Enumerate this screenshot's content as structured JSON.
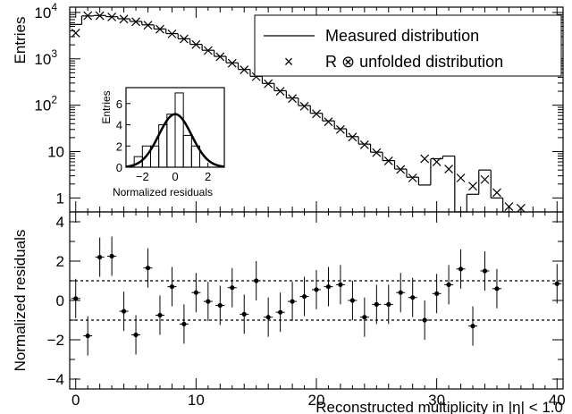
{
  "chart_data": [
    {
      "type": "line",
      "panel": "top",
      "ylabel": "Entries",
      "yscale": "log",
      "xlim": [
        -0.5,
        40.5
      ],
      "ylim": [
        0.5,
        13000
      ],
      "ytick_labels": [
        {
          "value": 1,
          "label": "1"
        },
        {
          "value": 10,
          "label": "10"
        },
        {
          "value": 100,
          "label": "10",
          "exp": "2"
        },
        {
          "value": 1000,
          "label": "10",
          "exp": "3"
        },
        {
          "value": 10000,
          "label": "10",
          "exp": "4"
        }
      ],
      "legend": {
        "placement": "top-right",
        "entries": [
          {
            "marker": "line",
            "label": "Measured distribution"
          },
          {
            "marker": "×",
            "label": "R ⊗ unfolded distribution"
          }
        ]
      },
      "series": [
        {
          "name": "Measured distribution",
          "style": "histogram",
          "x": [
            0,
            1,
            2,
            3,
            4,
            5,
            6,
            7,
            8,
            9,
            10,
            11,
            12,
            13,
            14,
            15,
            16,
            17,
            18,
            19,
            20,
            21,
            22,
            23,
            24,
            25,
            26,
            27,
            28,
            29,
            30,
            31,
            32,
            33,
            34,
            35,
            36
          ],
          "values": [
            5500,
            8400,
            8600,
            8100,
            7300,
            6400,
            5400,
            4400,
            3500,
            2700,
            2050,
            1530,
            1130,
            820,
            590,
            420,
            295,
            205,
            143,
            98,
            67,
            46,
            31,
            21,
            14.5,
            9.7,
            6.4,
            4.2,
            2.8,
            1.9,
            7,
            8,
            0.5,
            1.2,
            4,
            1,
            0.5
          ]
        },
        {
          "name": "R ⊗ unfolded distribution",
          "style": "marker",
          "x": [
            0,
            1,
            2,
            3,
            4,
            5,
            6,
            7,
            8,
            9,
            10,
            11,
            12,
            13,
            14,
            15,
            16,
            17,
            18,
            19,
            20,
            21,
            22,
            23,
            24,
            25,
            26,
            27,
            28,
            29,
            30,
            31,
            32,
            33,
            34,
            35,
            36,
            37
          ],
          "values": [
            3600,
            8500,
            8500,
            8000,
            7200,
            6300,
            5300,
            4350,
            3450,
            2680,
            2030,
            1510,
            1110,
            805,
            580,
            412,
            290,
            200,
            139,
            95,
            65,
            44,
            30,
            20.5,
            14,
            9.5,
            6.3,
            4.1,
            2.7,
            7,
            6,
            4.2,
            2.7,
            1.8,
            2.5,
            1.3,
            0.65,
            0.6
          ]
        }
      ]
    },
    {
      "type": "bar",
      "panel": "inset",
      "xlabel": "Normalized residuals",
      "ylabel": "Entries",
      "xlim": [
        -3,
        3
      ],
      "ylim": [
        0,
        7.5
      ],
      "xticks": [
        -2,
        0,
        2
      ],
      "yticks": [
        0,
        2,
        4,
        6
      ],
      "bin_width": 0.5,
      "bin_centers": [
        -2.25,
        -1.75,
        -1.25,
        -0.75,
        -0.25,
        0.25,
        0.75,
        1.25,
        1.75,
        2.25
      ],
      "values": [
        1,
        2,
        2,
        4,
        5,
        7,
        3,
        2,
        0,
        0
      ],
      "curve": {
        "type": "gaussian",
        "mean": 0,
        "sigma": 1,
        "amplitude": 5
      }
    },
    {
      "type": "scatter",
      "panel": "bottom",
      "xlabel": "Reconstructed multiplicity in |η| < 1.0",
      "ylabel": "Normalized residuals",
      "xlim": [
        -0.5,
        40.5
      ],
      "ylim": [
        -4.5,
        4.5
      ],
      "xticks": [
        0,
        10,
        20,
        30,
        40
      ],
      "yticks": [
        -4,
        -2,
        0,
        2,
        4
      ],
      "reference_lines": [
        1,
        -1
      ],
      "x": [
        0,
        1,
        2,
        3,
        4,
        5,
        6,
        7,
        8,
        9,
        10,
        11,
        12,
        13,
        14,
        15,
        16,
        17,
        18,
        19,
        20,
        21,
        22,
        23,
        24,
        25,
        26,
        27,
        28,
        29,
        30,
        31,
        32,
        33,
        34,
        35,
        40
      ],
      "values": [
        0.1,
        -1.8,
        2.2,
        2.25,
        -0.55,
        -1.75,
        1.65,
        -0.75,
        0.7,
        -1.2,
        0.4,
        -0.05,
        -0.25,
        0.65,
        -0.7,
        1.0,
        -0.85,
        -0.6,
        -0.05,
        0.2,
        0.55,
        0.7,
        0.8,
        0.0,
        -0.85,
        -0.2,
        -0.2,
        0.4,
        0.15,
        -1.0,
        0.35,
        0.8,
        1.6,
        -1.3,
        1.5,
        0.6,
        0.85
      ],
      "error": 1
    }
  ]
}
